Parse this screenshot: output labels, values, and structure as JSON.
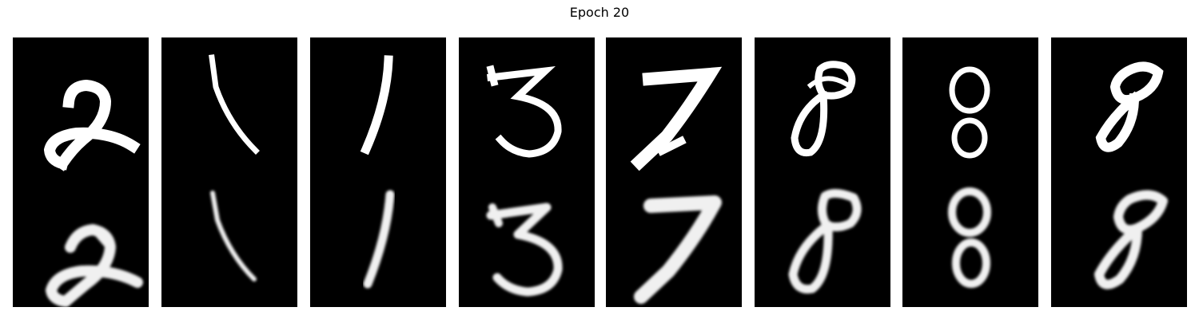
{
  "figure": {
    "title": "Epoch 20"
  },
  "columns": [
    {
      "digit": "2",
      "rows": [
        "original",
        "reconstruction"
      ]
    },
    {
      "digit": "1",
      "rows": [
        "original",
        "reconstruction"
      ]
    },
    {
      "digit": "1",
      "rows": [
        "original",
        "reconstruction"
      ]
    },
    {
      "digit": "3",
      "rows": [
        "original",
        "reconstruction"
      ]
    },
    {
      "digit": "7",
      "rows": [
        "original",
        "reconstruction"
      ]
    },
    {
      "digit": "8",
      "rows": [
        "original",
        "reconstruction"
      ]
    },
    {
      "digit": "8",
      "rows": [
        "original",
        "reconstruction"
      ]
    },
    {
      "digit": "8",
      "rows": [
        "original",
        "reconstruction"
      ]
    }
  ],
  "colors": {
    "background": "#000000",
    "stroke_original": "#ffffff",
    "stroke_reconstruction": "#f0f0f0"
  }
}
